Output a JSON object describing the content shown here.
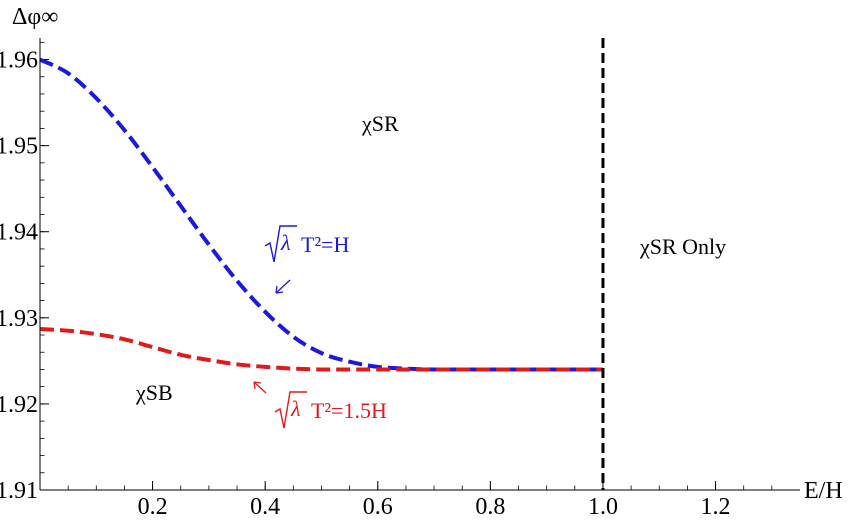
{
  "chart_data": {
    "type": "line",
    "xlabel": "E/H",
    "ylabel": "Δφ∞",
    "xlim": [
      0,
      1.35
    ],
    "ylim": [
      1.91,
      1.9625
    ],
    "x_ticks": [
      "0.2",
      "0.4",
      "0.6",
      "0.8",
      "1.0",
      "1.2"
    ],
    "y_ticks": [
      "1.91",
      "1.92",
      "1.93",
      "1.94",
      "1.95",
      "1.96"
    ],
    "series": [
      {
        "name": "√λ T²=H",
        "color": "#1a1adb",
        "style": "dashed",
        "x": [
          0.0,
          0.05,
          0.1,
          0.15,
          0.2,
          0.25,
          0.3,
          0.35,
          0.4,
          0.45,
          0.5,
          0.55,
          0.6,
          0.65,
          0.7,
          0.75,
          0.8,
          0.85,
          0.9,
          0.95,
          1.0
        ],
        "y": [
          1.96,
          1.9584,
          1.9555,
          1.9518,
          1.9475,
          1.943,
          1.9385,
          1.9343,
          1.9307,
          1.9278,
          1.9259,
          1.9249,
          1.9243,
          1.9241,
          1.924,
          1.924,
          1.924,
          1.924,
          1.924,
          1.924,
          1.924
        ]
      },
      {
        "name": "√λ T²=1.5H",
        "color": "#e01a1a",
        "style": "dashed",
        "x": [
          0.0,
          0.05,
          0.1,
          0.15,
          0.2,
          0.25,
          0.3,
          0.35,
          0.4,
          0.45,
          0.5,
          0.55,
          0.6,
          0.65,
          0.7,
          0.75,
          0.8,
          0.85,
          0.9,
          0.95,
          1.0
        ],
        "y": [
          1.9287,
          1.9285,
          1.9281,
          1.9275,
          1.9266,
          1.9257,
          1.9251,
          1.9246,
          1.9243,
          1.9241,
          1.924,
          1.924,
          1.924,
          1.924,
          1.924,
          1.924,
          1.924,
          1.924,
          1.924,
          1.924,
          1.924
        ]
      }
    ],
    "vline": {
      "x": 1.0,
      "color": "#000000",
      "style": "dashed"
    },
    "annotations": {
      "region_sr": "χSR",
      "region_sr_only": "χSR Only",
      "region_sb": "χSB",
      "blue_label_rest": "T²=H",
      "red_label_rest": "T²=1.5H"
    }
  }
}
